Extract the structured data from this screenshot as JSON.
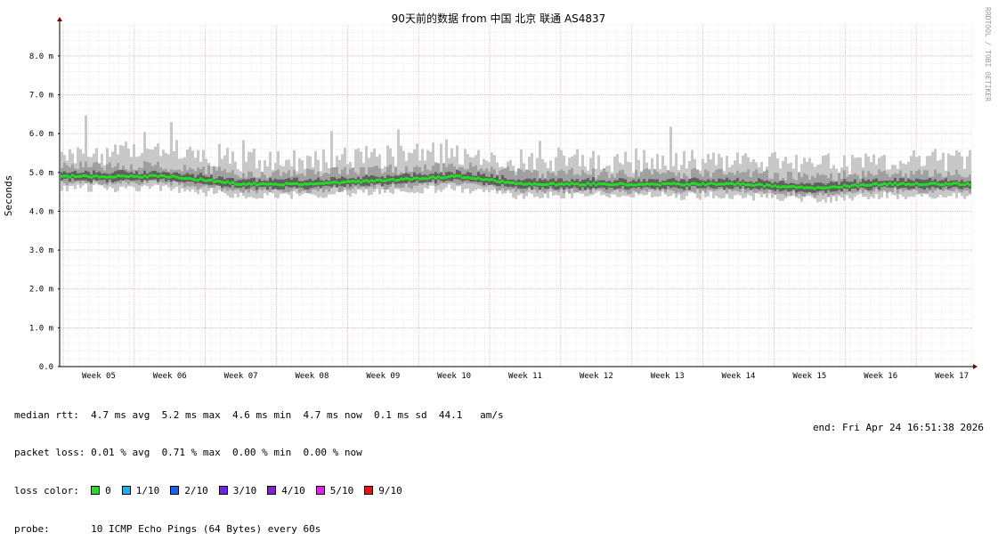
{
  "chart_data": {
    "type": "line",
    "title": "90天前的数据 from  中国 北京 联通 AS4837",
    "ylabel": "Seconds",
    "ylim": [
      0,
      0.0088
    ],
    "yticks": [
      {
        "value": 0.0,
        "label": "0.0"
      },
      {
        "value": 0.001,
        "label": "1.0 m"
      },
      {
        "value": 0.002,
        "label": "2.0 m"
      },
      {
        "value": 0.003,
        "label": "3.0 m"
      },
      {
        "value": 0.004,
        "label": "4.0 m"
      },
      {
        "value": 0.005,
        "label": "5.0 m"
      },
      {
        "value": 0.006,
        "label": "6.0 m"
      },
      {
        "value": 0.007,
        "label": "7.0 m"
      },
      {
        "value": 0.008,
        "label": "8.0 m"
      }
    ],
    "xticks": [
      "Week 05",
      "Week 06",
      "Week 07",
      "Week 08",
      "Week 09",
      "Week 10",
      "Week 11",
      "Week 12",
      "Week 13",
      "Week 14",
      "Week 15",
      "Week 16",
      "Week 17"
    ],
    "grid": true,
    "series": [
      {
        "name": "median rtt",
        "points": [
          {
            "week": "Week 05",
            "value": 0.0049
          },
          {
            "week": "Week 06",
            "value": 0.0049
          },
          {
            "week": "Week 07",
            "value": 0.0047
          },
          {
            "week": "Week 08",
            "value": 0.0047
          },
          {
            "week": "Week 09",
            "value": 0.0048
          },
          {
            "week": "Week 10",
            "value": 0.0049
          },
          {
            "week": "Week 11",
            "value": 0.0047
          },
          {
            "week": "Week 12",
            "value": 0.0047
          },
          {
            "week": "Week 13",
            "value": 0.0047
          },
          {
            "week": "Week 14",
            "value": 0.0047
          },
          {
            "week": "Week 15",
            "value": 0.0046
          },
          {
            "week": "Week 16",
            "value": 0.0047
          },
          {
            "week": "Week 17",
            "value": 0.0047
          }
        ]
      }
    ],
    "smoke_upper_max": 0.0054,
    "smoke_lower_min": 0.0044,
    "colors": {
      "grid_minor": "#dcdcdc",
      "grid_major": "#f0a0a0",
      "smoke_light": "#c8c8c8",
      "smoke_mid": "#a0a0a0",
      "smoke_dark": "#606060",
      "median": "#22dd22",
      "axis_arrow": "#800000"
    }
  },
  "watermark": "RRDTOOL / TOBI OETIKER",
  "legend": {
    "median_rtt": "median rtt:  4.7 ms avg  5.2 ms max  4.6 ms min  4.7 ms now  0.1 ms sd  44.1   am/s",
    "packet_loss": "packet loss: 0.01 % avg  0.71 % max  0.00 % min  0.00 % now",
    "loss_color_label": "loss color:  ",
    "loss_items": [
      {
        "label": "0",
        "color": "#22dd22"
      },
      {
        "label": "1/10",
        "color": "#1cb0f0"
      },
      {
        "label": "2/10",
        "color": "#1c60f0"
      },
      {
        "label": "3/10",
        "color": "#7020f0"
      },
      {
        "label": "4/10",
        "color": "#8020d0"
      },
      {
        "label": "5/10",
        "color": "#e020f0"
      },
      {
        "label": "9/10",
        "color": "#f01010"
      }
    ],
    "probe": "probe:       10 ICMP Echo Pings (64 Bytes) every 60s",
    "end": "end: Fri Apr 24 16:51:38 2026"
  }
}
